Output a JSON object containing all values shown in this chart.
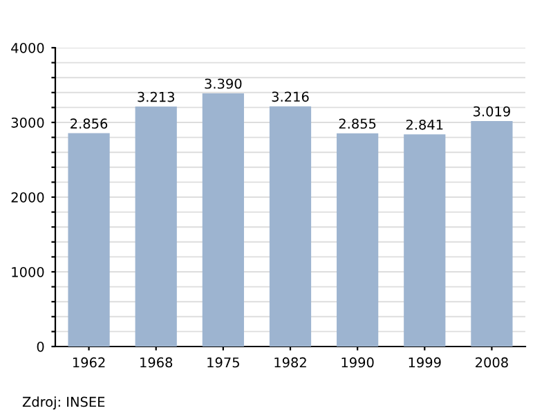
{
  "chart_data": {
    "type": "bar",
    "categories": [
      "1962",
      "1968",
      "1975",
      "1982",
      "1990",
      "1999",
      "2008"
    ],
    "values": [
      2856,
      3213,
      3390,
      3216,
      2855,
      2841,
      3019
    ],
    "value_labels": [
      "2.856",
      "3.213",
      "3.390",
      "3.216",
      "2.855",
      "2.841",
      "3.019"
    ],
    "color": "#9db4d0",
    "ylim": [
      0,
      4000
    ],
    "yticks": [
      0,
      {
        "value": 200,
        "label": null
      },
      {
        "value": 400,
        "label": null
      },
      {
        "value": 600,
        "label": null
      },
      {
        "value": 800,
        "label": null
      },
      1000,
      {
        "value": 1200,
        "label": null
      },
      {
        "value": 1400,
        "label": null
      },
      {
        "value": 1600,
        "label": null
      },
      {
        "value": 1800,
        "label": null
      },
      2000,
      {
        "value": 2200,
        "label": null
      },
      {
        "value": 2400,
        "label": null
      },
      {
        "value": 2600,
        "label": null
      },
      {
        "value": 2800,
        "label": null
      },
      3000,
      {
        "value": 3200,
        "label": null
      },
      {
        "value": 3400,
        "label": null
      },
      {
        "value": 3600,
        "label": null
      },
      {
        "value": 3800,
        "label": null
      },
      4000
    ],
    "grid": "y",
    "annotations": [
      "Zdroj: INSEE"
    ]
  }
}
